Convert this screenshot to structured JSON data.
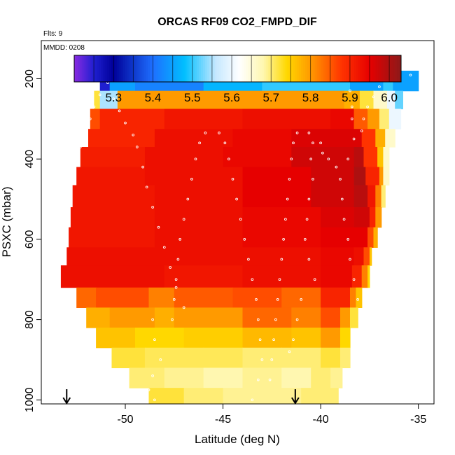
{
  "chart_data": {
    "type": "heatmap",
    "title": "ORCAS RF09 CO2_FMPD_DIF",
    "annotations": {
      "flights": "Flts: 9",
      "date": "MMDD: 0208"
    },
    "xlabel": "Latitude (deg N)",
    "ylabel": "PSXC (mbar)",
    "xlim": [
      -54.3,
      -34.2
    ],
    "ylim": [
      1010,
      105
    ],
    "y_reversed": true,
    "x_ticks": [
      -50,
      -45,
      -40,
      -35
    ],
    "x_tick_labels": [
      "-50",
      "-45",
      "-40",
      "-35"
    ],
    "y_ticks": [
      200,
      400,
      600,
      800,
      1000
    ],
    "y_tick_labels": [
      "200",
      "400",
      "600",
      "800",
      "1000"
    ],
    "colorbar": {
      "range": [
        5.2,
        6.03
      ],
      "ticks": [
        5.3,
        5.4,
        5.5,
        5.6,
        5.7,
        5.8,
        5.9,
        6.0
      ],
      "tick_labels": [
        "5.3",
        "5.4",
        "5.5",
        "5.6",
        "5.7",
        "5.8",
        "5.9",
        "6.0"
      ],
      "stops": [
        {
          "v": 5.2,
          "c": "#8a2be2"
        },
        {
          "v": 5.25,
          "c": "#1f1fd0"
        },
        {
          "v": 5.3,
          "c": "#000099"
        },
        {
          "v": 5.4,
          "c": "#1e6fff"
        },
        {
          "v": 5.48,
          "c": "#00bfff"
        },
        {
          "v": 5.56,
          "c": "#c6e8ff"
        },
        {
          "v": 5.62,
          "c": "#ffffff"
        },
        {
          "v": 5.68,
          "c": "#fff7b0"
        },
        {
          "v": 5.74,
          "c": "#ffd800"
        },
        {
          "v": 5.8,
          "c": "#ff9a00"
        },
        {
          "v": 5.88,
          "c": "#ff3300"
        },
        {
          "v": 5.95,
          "c": "#e60000"
        },
        {
          "v": 6.03,
          "c": "#8b1a1a"
        }
      ]
    },
    "curtain_rows": [
      {
        "p_top": 180,
        "p_bot": 230,
        "lat_start": -51.3,
        "lat_end": -35.0,
        "segments": [
          [
            -51.3,
            5.25
          ],
          [
            -50.8,
            5.45
          ],
          [
            -49.5,
            5.42
          ],
          [
            -46.0,
            5.47
          ],
          [
            -43.0,
            5.5
          ],
          [
            -38.5,
            5.45
          ],
          [
            -36.8,
            5.5
          ],
          [
            -36.3,
            5.45
          ]
        ]
      },
      {
        "p_top": 230,
        "p_bot": 275,
        "lat_start": -51.6,
        "lat_end": -35.8,
        "segments": [
          [
            -51.6,
            5.72
          ],
          [
            -51.3,
            5.55
          ],
          [
            -50.4,
            5.8
          ],
          [
            -45.0,
            5.8
          ],
          [
            -38.8,
            5.78
          ],
          [
            -38.0,
            5.72
          ],
          [
            -37.3,
            5.66
          ],
          [
            -36.6,
            5.6
          ],
          [
            -36.2,
            5.52
          ]
        ]
      },
      {
        "p_top": 275,
        "p_bot": 325,
        "lat_start": -51.8,
        "lat_end": -35.9,
        "segments": [
          [
            -51.8,
            5.86
          ],
          [
            -51.3,
            5.9
          ],
          [
            -48.0,
            5.92
          ],
          [
            -44.0,
            5.93
          ],
          [
            -39.5,
            5.94
          ],
          [
            -38.3,
            5.85
          ],
          [
            -37.6,
            5.8
          ],
          [
            -37.0,
            5.7
          ],
          [
            -36.5,
            5.6
          ]
        ]
      },
      {
        "p_top": 325,
        "p_bot": 370,
        "lat_start": -51.9,
        "lat_end": -36.2,
        "segments": [
          [
            -51.9,
            5.9
          ],
          [
            -48.5,
            5.93
          ],
          [
            -44.5,
            5.94
          ],
          [
            -41.5,
            5.96
          ],
          [
            -38.5,
            5.96
          ],
          [
            -37.9,
            5.88
          ],
          [
            -37.2,
            5.78
          ],
          [
            -36.7,
            5.66
          ]
        ]
      },
      {
        "p_top": 370,
        "p_bot": 420,
        "lat_start": -52.3,
        "lat_end": -36.5,
        "segments": [
          [
            -52.3,
            5.91
          ],
          [
            -49.0,
            5.93
          ],
          [
            -45.0,
            5.94
          ],
          [
            -41.5,
            5.97
          ],
          [
            -38.3,
            5.99
          ],
          [
            -37.8,
            5.88
          ],
          [
            -37.1,
            5.76
          ],
          [
            -36.8,
            5.66
          ]
        ]
      },
      {
        "p_top": 420,
        "p_bot": 465,
        "lat_start": -52.5,
        "lat_end": -36.5,
        "segments": [
          [
            -52.5,
            5.92
          ],
          [
            -49.0,
            5.93
          ],
          [
            -44.0,
            5.95
          ],
          [
            -40.5,
            5.97
          ],
          [
            -38.3,
            6.0
          ],
          [
            -37.7,
            5.9
          ],
          [
            -37.0,
            5.8
          ],
          [
            -36.8,
            5.66
          ]
        ]
      },
      {
        "p_top": 465,
        "p_bot": 520,
        "lat_start": -52.7,
        "lat_end": -36.7,
        "segments": [
          [
            -52.7,
            5.92
          ],
          [
            -48.5,
            5.93
          ],
          [
            -44.0,
            5.95
          ],
          [
            -40.5,
            5.97
          ],
          [
            -38.3,
            5.99
          ],
          [
            -37.6,
            5.92
          ],
          [
            -37.2,
            5.82
          ],
          [
            -36.9,
            5.7
          ]
        ]
      },
      {
        "p_top": 520,
        "p_bot": 570,
        "lat_start": -52.8,
        "lat_end": -36.9,
        "segments": [
          [
            -52.8,
            5.92
          ],
          [
            -48.5,
            5.93
          ],
          [
            -44.0,
            5.94
          ],
          [
            -40.0,
            5.96
          ],
          [
            -38.3,
            5.97
          ],
          [
            -37.5,
            5.9
          ],
          [
            -37.2,
            5.8
          ]
        ]
      },
      {
        "p_top": 570,
        "p_bot": 620,
        "lat_start": -52.9,
        "lat_end": -37.1,
        "segments": [
          [
            -52.9,
            5.92
          ],
          [
            -48.5,
            5.93
          ],
          [
            -44.0,
            5.94
          ],
          [
            -40.0,
            5.95
          ],
          [
            -38.3,
            5.95
          ],
          [
            -37.6,
            5.86
          ],
          [
            -37.3,
            5.78
          ]
        ]
      },
      {
        "p_top": 620,
        "p_bot": 665,
        "lat_start": -53.0,
        "lat_end": -37.4,
        "segments": [
          [
            -53.0,
            5.93
          ],
          [
            -48.0,
            5.93
          ],
          [
            -44.0,
            5.93
          ],
          [
            -40.0,
            5.94
          ],
          [
            -38.3,
            5.93
          ],
          [
            -37.8,
            5.86
          ],
          [
            -37.5,
            5.76
          ]
        ]
      },
      {
        "p_top": 665,
        "p_bot": 720,
        "lat_start": -53.3,
        "lat_end": -37.5,
        "segments": [
          [
            -53.3,
            5.93
          ],
          [
            -48.0,
            5.92
          ],
          [
            -44.0,
            5.93
          ],
          [
            -40.0,
            5.94
          ],
          [
            -38.4,
            5.9
          ],
          [
            -37.9,
            5.82
          ],
          [
            -37.6,
            5.74
          ]
        ]
      },
      {
        "p_top": 720,
        "p_bot": 770,
        "lat_start": -52.5,
        "lat_end": -37.9,
        "segments": [
          [
            -52.5,
            5.84
          ],
          [
            -51.5,
            5.86
          ],
          [
            -48.8,
            5.82
          ],
          [
            -47.5,
            5.85
          ],
          [
            -44.5,
            5.86
          ],
          [
            -42.0,
            5.84
          ],
          [
            -40.0,
            5.9
          ],
          [
            -38.5,
            5.82
          ],
          [
            -38.2,
            5.76
          ]
        ]
      },
      {
        "p_top": 770,
        "p_bot": 820,
        "lat_start": -52.0,
        "lat_end": -38.1,
        "segments": [
          [
            -52.0,
            5.78
          ],
          [
            -50.8,
            5.8
          ],
          [
            -48.5,
            5.78
          ],
          [
            -47.5,
            5.8
          ],
          [
            -44.0,
            5.84
          ],
          [
            -41.5,
            5.82
          ],
          [
            -40.0,
            5.86
          ],
          [
            -39.0,
            5.8
          ],
          [
            -38.5,
            5.72
          ]
        ]
      },
      {
        "p_top": 820,
        "p_bot": 870,
        "lat_start": -51.5,
        "lat_end": -38.5,
        "segments": [
          [
            -51.5,
            5.76
          ],
          [
            -49.5,
            5.74
          ],
          [
            -47.0,
            5.75
          ],
          [
            -44.0,
            5.77
          ],
          [
            -41.5,
            5.76
          ],
          [
            -40.0,
            5.8
          ],
          [
            -39.0,
            5.74
          ]
        ]
      },
      {
        "p_top": 870,
        "p_bot": 920,
        "lat_start": -50.7,
        "lat_end": -38.5,
        "segments": [
          [
            -50.7,
            5.72
          ],
          [
            -49.0,
            5.71
          ],
          [
            -46.0,
            5.71
          ],
          [
            -44.0,
            5.7
          ],
          [
            -42.0,
            5.7
          ],
          [
            -40.0,
            5.72
          ],
          [
            -39.0,
            5.7
          ]
        ]
      },
      {
        "p_top": 920,
        "p_bot": 970,
        "lat_start": -49.8,
        "lat_end": -38.9,
        "segments": [
          [
            -49.8,
            5.7
          ],
          [
            -48.0,
            5.69
          ],
          [
            -46.0,
            5.68
          ],
          [
            -44.0,
            5.69
          ],
          [
            -42.0,
            5.68
          ],
          [
            -40.5,
            5.7
          ],
          [
            -39.5,
            5.69
          ]
        ]
      },
      {
        "p_top": 970,
        "p_bot": 1010,
        "lat_start": -48.8,
        "lat_end": -39.1,
        "segments": [
          [
            -48.8,
            5.72
          ],
          [
            -47.0,
            5.7
          ],
          [
            -45.0,
            5.69
          ],
          [
            -43.0,
            5.69
          ],
          [
            -41.0,
            5.7
          ],
          [
            -40.0,
            5.7
          ]
        ]
      }
    ],
    "flight_track": [
      [
        -51.1,
        188
      ],
      [
        -50.7,
        188
      ],
      [
        -50.9,
        210
      ],
      [
        -51.3,
        240
      ],
      [
        -51.6,
        270
      ],
      [
        -51.8,
        300
      ],
      [
        -52.0,
        330
      ],
      [
        -52.3,
        370
      ],
      [
        -52.5,
        410
      ],
      [
        -52.7,
        450
      ],
      [
        -52.8,
        500
      ],
      [
        -52.9,
        560
      ],
      [
        -53.0,
        610
      ],
      [
        -53.2,
        660
      ],
      [
        -50.6,
        250
      ],
      [
        -50.3,
        280
      ],
      [
        -50.0,
        310
      ],
      [
        -49.6,
        340
      ],
      [
        -49.4,
        370
      ],
      [
        -49.1,
        420
      ],
      [
        -48.9,
        470
      ],
      [
        -48.6,
        520
      ],
      [
        -48.3,
        570
      ],
      [
        -48.0,
        620
      ],
      [
        -47.7,
        670
      ],
      [
        -47.4,
        720
      ],
      [
        -47.0,
        770
      ],
      [
        -48.6,
        800
      ],
      [
        -48.5,
        850
      ],
      [
        -48.2,
        900
      ],
      [
        -48.6,
        940
      ],
      [
        -48.8,
        975
      ],
      [
        -48.5,
        1000
      ],
      [
        -47.6,
        800
      ],
      [
        -47.5,
        750
      ],
      [
        -47.4,
        700
      ],
      [
        -47.3,
        650
      ],
      [
        -47.2,
        600
      ],
      [
        -47.0,
        550
      ],
      [
        -46.8,
        500
      ],
      [
        -46.6,
        450
      ],
      [
        -46.4,
        400
      ],
      [
        -46.2,
        360
      ],
      [
        -45.9,
        335
      ],
      [
        -45.2,
        335
      ],
      [
        -44.9,
        360
      ],
      [
        -44.7,
        400
      ],
      [
        -44.5,
        450
      ],
      [
        -44.3,
        500
      ],
      [
        -44.1,
        550
      ],
      [
        -43.9,
        600
      ],
      [
        -43.7,
        650
      ],
      [
        -43.5,
        700
      ],
      [
        -43.3,
        750
      ],
      [
        -43.2,
        800
      ],
      [
        -43.1,
        850
      ],
      [
        -43.0,
        900
      ],
      [
        -43.2,
        950
      ],
      [
        -43.5,
        1000
      ],
      [
        -42.6,
        950
      ],
      [
        -42.5,
        900
      ],
      [
        -42.4,
        850
      ],
      [
        -42.3,
        800
      ],
      [
        -42.2,
        750
      ],
      [
        -42.1,
        700
      ],
      [
        -42.0,
        650
      ],
      [
        -41.9,
        600
      ],
      [
        -41.8,
        550
      ],
      [
        -41.7,
        500
      ],
      [
        -41.6,
        450
      ],
      [
        -41.5,
        400
      ],
      [
        -41.4,
        360
      ],
      [
        -41.2,
        335
      ],
      [
        -40.6,
        335
      ],
      [
        -40.4,
        360
      ],
      [
        -40.5,
        400
      ],
      [
        -40.4,
        450
      ],
      [
        -40.6,
        500
      ],
      [
        -40.7,
        550
      ],
      [
        -40.8,
        600
      ],
      [
        -40.6,
        650
      ],
      [
        -40.3,
        700
      ],
      [
        -41.0,
        750
      ],
      [
        -41.2,
        800
      ],
      [
        -41.4,
        850
      ],
      [
        -41.6,
        880
      ],
      [
        -40.0,
        360
      ],
      [
        -39.9,
        385
      ],
      [
        -39.6,
        400
      ],
      [
        -39.2,
        420
      ],
      [
        -39.0,
        450
      ],
      [
        -38.9,
        500
      ],
      [
        -38.8,
        550
      ],
      [
        -38.6,
        600
      ],
      [
        -38.5,
        650
      ],
      [
        -38.3,
        700
      ],
      [
        -38.1,
        750
      ],
      [
        -38.0,
        800
      ],
      [
        -38.5,
        230
      ],
      [
        -38.4,
        300
      ],
      [
        -38.3,
        350
      ],
      [
        -38.6,
        400
      ],
      [
        -38.4,
        270
      ],
      [
        -37.3,
        245
      ],
      [
        -37.6,
        270
      ],
      [
        -37.8,
        300
      ],
      [
        -37.9,
        330
      ],
      [
        -37.0,
        220
      ],
      [
        -36.5,
        200
      ],
      [
        -38.4,
        191
      ],
      [
        -37.8,
        191
      ],
      [
        -37.2,
        191
      ],
      [
        -36.6,
        191
      ],
      [
        -36.0,
        191
      ],
      [
        -35.4,
        191
      ]
    ],
    "arrows_lat": [
      -53.0,
      -41.3
    ]
  }
}
